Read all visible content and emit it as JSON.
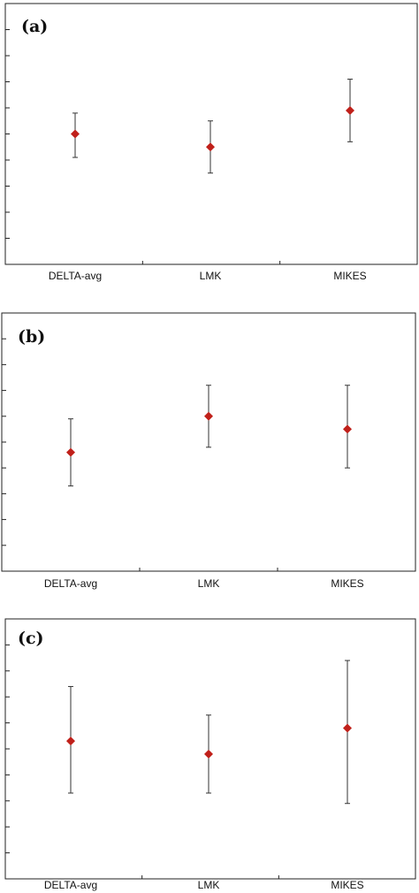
{
  "marker_color": "#c0201a",
  "chart_data": [
    {
      "type": "scatter",
      "panel_label": "(a)",
      "categories": [
        "DELTA-avg",
        "LMK",
        "MIKES"
      ],
      "series": [
        {
          "values": [
            5.0,
            4.5,
            5.9
          ],
          "error_low": [
            4.1,
            3.5,
            4.7
          ],
          "error_high": [
            5.8,
            5.5,
            7.1
          ]
        }
      ],
      "ylim": [
        0,
        10
      ],
      "grid": false
    },
    {
      "type": "scatter",
      "panel_label": "(b)",
      "categories": [
        "DELTA-avg",
        "LMK",
        "MIKES"
      ],
      "series": [
        {
          "values": [
            4.6,
            6.0,
            5.5
          ],
          "error_low": [
            3.3,
            4.8,
            4.0
          ],
          "error_high": [
            5.9,
            7.2,
            7.2
          ]
        }
      ],
      "ylim": [
        0,
        10
      ],
      "grid": false
    },
    {
      "type": "scatter",
      "panel_label": "(c)",
      "categories": [
        "DELTA-avg",
        "LMK",
        "MIKES"
      ],
      "series": [
        {
          "values": [
            5.3,
            4.8,
            5.8
          ],
          "error_low": [
            3.3,
            3.3,
            2.9
          ],
          "error_high": [
            7.4,
            6.3,
            8.4
          ]
        }
      ],
      "ylim": [
        0,
        10
      ],
      "grid": false
    }
  ]
}
